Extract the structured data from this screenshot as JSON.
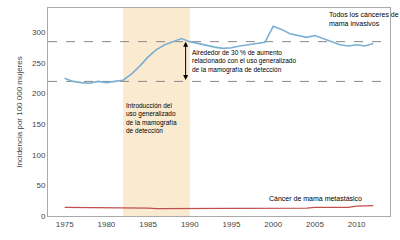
{
  "chart_data": {
    "type": "line",
    "ylabel": "Incidencia por 100 000 mujeres",
    "x": [
      1975,
      1976,
      1977,
      1978,
      1979,
      1980,
      1981,
      1982,
      1983,
      1984,
      1985,
      1986,
      1987,
      1988,
      1989,
      1990,
      1991,
      1992,
      1993,
      1994,
      1995,
      1996,
      1997,
      1998,
      1999,
      2000,
      2001,
      2002,
      2003,
      2004,
      2005,
      2006,
      2007,
      2008,
      2009,
      2010,
      2011,
      2012
    ],
    "series": [
      {
        "name": "Todos los cánceres de\nmama invasivos",
        "color": "#7bafd4",
        "values": [
          225,
          220,
          218,
          217,
          220,
          218,
          220,
          222,
          232,
          245,
          260,
          272,
          280,
          285,
          290,
          285,
          282,
          278,
          276,
          274,
          275,
          278,
          280,
          282,
          284,
          310,
          305,
          298,
          295,
          292,
          295,
          290,
          285,
          280,
          278,
          280,
          278,
          282
        ]
      },
      {
        "name": "Cáncer de mama metastásico",
        "color": "#c0504d",
        "values": [
          14,
          14,
          14,
          13,
          13,
          13,
          14,
          14,
          13,
          13,
          13,
          12,
          12,
          12,
          12,
          12,
          12,
          12,
          12,
          13,
          13,
          13,
          13,
          13,
          13,
          13,
          13,
          13,
          13,
          13,
          14,
          14,
          14,
          14,
          14,
          16,
          16,
          17
        ]
      }
    ],
    "xlim": [
      1973,
      2014
    ],
    "ylim": [
      0,
      340
    ],
    "xticks": [
      1975,
      1980,
      1985,
      1990,
      1995,
      2000,
      2005,
      2010
    ],
    "yticks": [
      0,
      50,
      100,
      150,
      200,
      250,
      300
    ],
    "grid": false,
    "shaded_region": [
      1982,
      1990
    ],
    "shaded_color": "#faebd0",
    "reference_lines": [
      220,
      285
    ],
    "reference_line_color": "#888888",
    "arrow_x": 1989.5,
    "annotations": [
      "Introducción del\nuso generalizado\nde la mamografía\nde detección",
      "Alrededor de 30 % de aumento\nrelacionado con el uso generalizado\nde la mamografía de detección"
    ]
  }
}
